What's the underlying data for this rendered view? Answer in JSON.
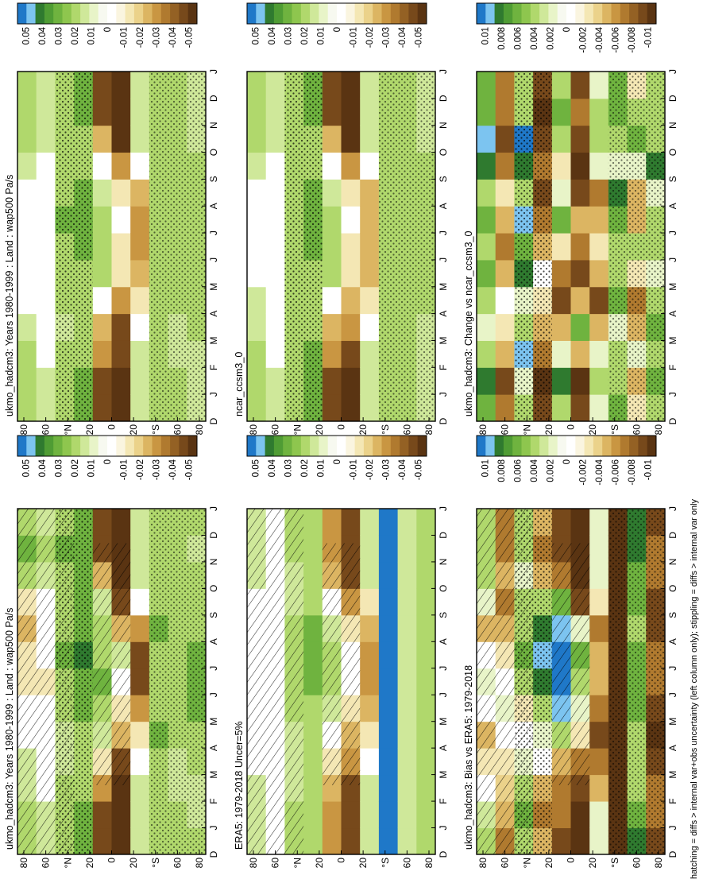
{
  "footnote": "hatching = diffs > internal var+obs uncertainty (left column only); stippling = diffs > internal var only",
  "colors": {
    "seq11": [
      "#1f78c8",
      "#7cc4f0",
      "#2f7a2f",
      "#4f9c34",
      "#6fb33f",
      "#8ec64e",
      "#b0d86c",
      "#cfe89a",
      "#e8f4c8",
      "#f7f9f0",
      "#ffffff",
      "#faf5e0",
      "#f4e7b4",
      "#ebd28a",
      "#dcb562",
      "#c99642",
      "#b07a2f",
      "#946124",
      "#77491b",
      "#5a3412"
    ],
    "hatch": "#000000",
    "stipple": "#000000"
  },
  "chart_data": [
    {
      "type": "heatmap",
      "title": "ukmo_hadcm3: Years 1980-1999 : Land : wap500 Pa/s",
      "x_months": [
        "J",
        "F",
        "M",
        "A",
        "M",
        "J",
        "J",
        "A",
        "S",
        "O",
        "N",
        "D",
        "J"
      ],
      "x_first_label": "D",
      "y_ticks": [
        "80",
        "60",
        "°N",
        "20",
        "0",
        "20",
        "°S",
        "60",
        "80"
      ],
      "colorbar": [
        "0.05",
        "0.04",
        "0.03",
        "0.02",
        "0.01",
        "0",
        "-0.01",
        "-0.02",
        "-0.03",
        "-0.04",
        "-0.05"
      ],
      "zlim": [
        -0.05,
        0.05
      ],
      "overlay": "hatch+stipple",
      "data": [
        [
          0.02,
          0.02,
          0.01,
          0.01,
          0.0,
          0.0,
          -0.01,
          -0.01,
          -0.02,
          -0.01,
          0.02,
          0.03,
          0.02
        ],
        [
          0.01,
          0.01,
          0.0,
          0.0,
          0.0,
          0.0,
          -0.01,
          0.0,
          0.0,
          0.0,
          0.01,
          0.02,
          0.01
        ],
        [
          0.02,
          0.02,
          0.02,
          0.01,
          0.01,
          0.02,
          0.02,
          0.03,
          0.02,
          0.02,
          0.02,
          0.03,
          0.02
        ],
        [
          0.03,
          0.03,
          0.02,
          0.02,
          0.02,
          0.03,
          0.03,
          0.04,
          0.03,
          0.03,
          0.03,
          0.03,
          0.03
        ],
        [
          -0.04,
          -0.04,
          -0.03,
          -0.01,
          0.01,
          0.02,
          0.03,
          0.02,
          0.02,
          0.01,
          -0.02,
          -0.04,
          -0.04
        ],
        [
          -0.05,
          -0.05,
          -0.05,
          -0.04,
          -0.02,
          -0.01,
          0.0,
          0.01,
          -0.02,
          -0.04,
          -0.05,
          -0.05,
          -0.05
        ],
        [
          0.01,
          0.01,
          0.01,
          0.0,
          -0.01,
          -0.03,
          -0.04,
          -0.04,
          -0.03,
          0.0,
          0.01,
          0.01,
          0.01
        ],
        [
          0.02,
          0.02,
          0.02,
          0.02,
          0.03,
          0.02,
          0.02,
          0.02,
          0.03,
          0.02,
          0.02,
          0.02,
          0.02
        ],
        [
          0.02,
          0.02,
          0.01,
          0.01,
          0.02,
          0.02,
          0.02,
          0.02,
          0.02,
          0.02,
          0.02,
          0.02,
          0.02
        ],
        [
          0.02,
          0.01,
          0.01,
          0.02,
          0.02,
          0.03,
          0.03,
          0.03,
          0.02,
          0.02,
          0.02,
          0.01,
          0.02
        ]
      ]
    },
    {
      "type": "heatmap",
      "title": "ukmo_hadcm3: Years 1980-1999 : Land : wap500 Pa/s",
      "x_months": [
        "J",
        "F",
        "M",
        "A",
        "M",
        "J",
        "J",
        "A",
        "S",
        "O",
        "N",
        "D",
        "J"
      ],
      "x_first_label": "D",
      "y_ticks": [
        "80",
        "60",
        "°N",
        "20",
        "0",
        "20",
        "°S",
        "60",
        "80"
      ],
      "colorbar": [
        "0.05",
        "0.04",
        "0.03",
        "0.02",
        "0.01",
        "0",
        "-0.01",
        "-0.02",
        "-0.03",
        "-0.04",
        "-0.05"
      ],
      "zlim": [
        -0.05,
        0.05
      ],
      "overlay": "stipple",
      "data": [
        [
          0.02,
          0.02,
          0.02,
          0.01,
          0.0,
          0.0,
          0.0,
          0.0,
          0.0,
          0.01,
          0.02,
          0.02,
          0.02
        ],
        [
          0.01,
          0.01,
          0.0,
          0.0,
          0.0,
          0.0,
          0.0,
          0.0,
          0.0,
          0.0,
          0.01,
          0.01,
          0.01
        ],
        [
          0.02,
          0.02,
          0.02,
          0.01,
          0.02,
          0.02,
          0.02,
          0.03,
          0.02,
          0.02,
          0.02,
          0.02,
          0.02
        ],
        [
          0.03,
          0.03,
          0.02,
          0.02,
          0.02,
          0.02,
          0.03,
          0.03,
          0.03,
          0.02,
          0.02,
          0.03,
          0.03
        ],
        [
          -0.04,
          -0.04,
          -0.03,
          -0.02,
          0.0,
          0.02,
          0.02,
          0.02,
          0.01,
          0.0,
          -0.02,
          -0.04,
          -0.04
        ],
        [
          -0.05,
          -0.05,
          -0.04,
          -0.04,
          -0.03,
          -0.01,
          -0.01,
          0.0,
          -0.01,
          -0.03,
          -0.05,
          -0.05,
          -0.05
        ],
        [
          0.01,
          0.01,
          0.01,
          0.0,
          -0.01,
          -0.02,
          -0.03,
          -0.03,
          -0.02,
          0.0,
          0.01,
          0.01,
          0.01
        ],
        [
          0.02,
          0.02,
          0.02,
          0.02,
          0.02,
          0.02,
          0.02,
          0.02,
          0.02,
          0.02,
          0.02,
          0.02,
          0.02
        ],
        [
          0.02,
          0.02,
          0.01,
          0.01,
          0.02,
          0.02,
          0.02,
          0.02,
          0.02,
          0.02,
          0.02,
          0.02,
          0.02
        ],
        [
          0.01,
          0.01,
          0.01,
          0.02,
          0.02,
          0.02,
          0.02,
          0.02,
          0.02,
          0.02,
          0.01,
          0.01,
          0.01
        ]
      ]
    },
    {
      "type": "heatmap",
      "title": "ERA5: 1979-2018 Uncer=5%",
      "x_months": [
        "J",
        "F",
        "M",
        "A",
        "M",
        "J",
        "J",
        "A",
        "S",
        "O",
        "N",
        "D",
        "J"
      ],
      "x_first_label": "D",
      "y_ticks": [
        "80",
        "60",
        "°N",
        "20",
        "0",
        "20",
        "°S",
        "60",
        "80"
      ],
      "colorbar": [
        "0.05",
        "0.04",
        "0.03",
        "0.02",
        "0.01",
        "0",
        "-0.01",
        "-0.02",
        "-0.03",
        "-0.04",
        "-0.05"
      ],
      "zlim": [
        -0.05,
        0.05
      ],
      "overlay": "hatch",
      "data": [
        [
          0.01,
          0.01,
          0.01,
          0.0,
          0.0,
          0.0,
          0.0,
          0.0,
          0.0,
          0.0,
          0.01,
          0.01,
          0.01
        ],
        [
          0.0,
          0.0,
          0.0,
          0.0,
          0.0,
          0.0,
          0.0,
          0.0,
          0.0,
          0.0,
          0.0,
          0.0,
          0.0
        ],
        [
          0.02,
          0.02,
          0.01,
          0.01,
          0.01,
          0.02,
          0.02,
          0.02,
          0.02,
          0.01,
          0.01,
          0.02,
          0.02
        ],
        [
          0.02,
          0.02,
          0.02,
          0.02,
          0.02,
          0.02,
          0.03,
          0.03,
          0.03,
          0.02,
          0.02,
          0.02,
          0.02
        ],
        [
          -0.03,
          -0.03,
          -0.02,
          -0.01,
          0.0,
          0.01,
          0.02,
          0.02,
          0.01,
          0.0,
          -0.02,
          -0.03,
          -0.03
        ],
        [
          -0.04,
          -0.04,
          -0.04,
          -0.03,
          -0.02,
          -0.01,
          0.0,
          0.0,
          -0.01,
          -0.03,
          -0.04,
          -0.04,
          -0.04
        ],
        [
          0.01,
          0.01,
          0.01,
          0.0,
          -0.01,
          -0.02,
          -0.03,
          -0.03,
          -0.02,
          -0.01,
          0.01,
          0.01,
          0.01
        ],
        [
          0.05,
          0.05,
          0.05,
          0.05,
          0.05,
          0.05,
          0.05,
          0.05,
          0.05,
          0.05,
          0.05,
          0.05,
          0.05
        ],
        [
          0.01,
          0.01,
          0.01,
          0.01,
          0.01,
          0.01,
          0.01,
          0.01,
          0.01,
          0.01,
          0.01,
          0.01,
          0.01
        ],
        [
          0.02,
          0.02,
          0.02,
          0.02,
          0.02,
          0.02,
          0.02,
          0.02,
          0.02,
          0.02,
          0.02,
          0.02,
          0.02
        ]
      ]
    },
    {
      "type": "heatmap",
      "title": "ncar_ccsm3_0",
      "x_months": [
        "J",
        "F",
        "M",
        "A",
        "M",
        "J",
        "J",
        "A",
        "S",
        "O",
        "N",
        "D",
        "J"
      ],
      "x_first_label": "D",
      "y_ticks": [
        "80",
        "60",
        "°N",
        "20",
        "0",
        "20",
        "°S",
        "60",
        "80"
      ],
      "colorbar": [
        "0.05",
        "0.04",
        "0.03",
        "0.02",
        "0.01",
        "0",
        "-0.01",
        "-0.02",
        "-0.03",
        "-0.04",
        "-0.05"
      ],
      "zlim": [
        -0.05,
        0.05
      ],
      "overlay": "stipple",
      "data": [
        [
          0.02,
          0.02,
          0.02,
          0.01,
          0.01,
          0.0,
          0.0,
          0.0,
          0.0,
          0.01,
          0.02,
          0.02,
          0.02
        ],
        [
          0.01,
          0.01,
          0.0,
          0.0,
          0.0,
          0.0,
          0.0,
          0.0,
          0.0,
          0.0,
          0.01,
          0.01,
          0.01
        ],
        [
          0.02,
          0.02,
          0.02,
          0.02,
          0.02,
          0.02,
          0.02,
          0.02,
          0.02,
          0.02,
          0.02,
          0.02,
          0.02
        ],
        [
          0.03,
          0.03,
          0.03,
          0.02,
          0.02,
          0.02,
          0.03,
          0.03,
          0.03,
          0.02,
          0.02,
          0.03,
          0.03
        ],
        [
          -0.04,
          -0.04,
          -0.03,
          -0.02,
          0.0,
          0.02,
          0.02,
          0.02,
          0.01,
          0.0,
          -0.02,
          -0.04,
          -0.04
        ],
        [
          -0.05,
          -0.05,
          -0.04,
          -0.03,
          -0.02,
          -0.01,
          -0.01,
          0.0,
          -0.01,
          -0.03,
          -0.05,
          -0.05,
          -0.05
        ],
        [
          0.01,
          0.01,
          0.01,
          0.0,
          -0.01,
          -0.02,
          -0.02,
          -0.02,
          -0.02,
          0.0,
          0.01,
          0.01,
          0.01
        ],
        [
          0.02,
          0.02,
          0.02,
          0.02,
          0.02,
          0.02,
          0.02,
          0.02,
          0.02,
          0.02,
          0.02,
          0.02,
          0.02
        ],
        [
          0.02,
          0.02,
          0.02,
          0.02,
          0.02,
          0.02,
          0.02,
          0.02,
          0.02,
          0.02,
          0.02,
          0.02,
          0.02
        ],
        [
          0.01,
          0.01,
          0.01,
          0.01,
          0.02,
          0.02,
          0.02,
          0.02,
          0.02,
          0.02,
          0.01,
          0.01,
          0.01
        ]
      ]
    },
    {
      "type": "heatmap",
      "title": "ukmo_hadcm3: Bias vs ERA5: 1979-2018",
      "x_months": [
        "J",
        "F",
        "M",
        "A",
        "M",
        "J",
        "J",
        "A",
        "S",
        "O",
        "N",
        "D",
        "J"
      ],
      "x_first_label": "D",
      "y_ticks": [
        "80",
        "60",
        "°N",
        "20",
        "0",
        "20",
        "°S",
        "60",
        "80"
      ],
      "colorbar": [
        "0.01",
        "0.008",
        "0.006",
        "0.004",
        "0.002",
        "0",
        "-0.002",
        "-0.004",
        "-0.006",
        "-0.008",
        "-0.01"
      ],
      "zlim": [
        -0.01,
        0.01
      ],
      "overlay": "hatch+stipple",
      "data": [
        [
          0.004,
          0.003,
          0.0,
          -0.002,
          -0.004,
          0.0,
          0.002,
          0.0,
          -0.004,
          0.002,
          0.004,
          0.004,
          0.004
        ],
        [
          -0.006,
          -0.004,
          -0.003,
          -0.002,
          0.0,
          0.002,
          0.0,
          -0.002,
          -0.004,
          -0.006,
          -0.004,
          -0.006,
          -0.006
        ],
        [
          0.004,
          0.006,
          0.004,
          0.002,
          0.0,
          -0.002,
          0.004,
          0.006,
          0.004,
          0.004,
          0.002,
          0.004,
          0.004
        ],
        [
          -0.004,
          -0.006,
          -0.004,
          0.0,
          0.002,
          0.004,
          0.008,
          0.009,
          0.008,
          0.004,
          -0.004,
          -0.006,
          -0.004
        ],
        [
          -0.008,
          -0.006,
          -0.006,
          -0.004,
          0.004,
          0.009,
          0.01,
          0.01,
          0.009,
          0.006,
          -0.006,
          -0.008,
          -0.008
        ],
        [
          -0.01,
          -0.01,
          -0.008,
          -0.006,
          -0.002,
          0.002,
          0.004,
          0.006,
          0.002,
          -0.008,
          -0.01,
          -0.01,
          -0.01
        ],
        [
          0.002,
          0.002,
          -0.004,
          -0.006,
          -0.008,
          -0.006,
          -0.004,
          -0.004,
          -0.006,
          -0.002,
          0.002,
          0.002,
          0.002
        ],
        [
          -0.01,
          -0.01,
          -0.01,
          -0.01,
          -0.01,
          -0.01,
          -0.01,
          -0.01,
          -0.01,
          -0.01,
          -0.01,
          -0.01,
          -0.01
        ],
        [
          0.008,
          0.006,
          0.004,
          0.004,
          0.004,
          0.006,
          0.006,
          0.006,
          0.004,
          0.006,
          0.006,
          0.008,
          0.008
        ],
        [
          -0.008,
          -0.006,
          -0.006,
          -0.008,
          -0.01,
          -0.008,
          -0.006,
          -0.006,
          -0.008,
          -0.008,
          -0.006,
          -0.006,
          -0.008
        ]
      ]
    },
    {
      "type": "heatmap",
      "title": "ukmo_hadcm3: Change vs ncar_ccsm3_0",
      "x_months": [
        "J",
        "F",
        "M",
        "A",
        "M",
        "J",
        "J",
        "A",
        "S",
        "O",
        "N",
        "D",
        "J"
      ],
      "x_first_label": "D",
      "y_ticks": [
        "80",
        "60",
        "°N",
        "20",
        "0",
        "20",
        "°S",
        "60",
        "80"
      ],
      "colorbar": [
        "0.01",
        "0.008",
        "0.006",
        "0.004",
        "0.002",
        "0",
        "-0.002",
        "-0.004",
        "-0.006",
        "-0.008",
        "-0.01"
      ],
      "zlim": [
        -0.01,
        0.01
      ],
      "overlay": "stipple",
      "data": [
        [
          0.006,
          0.008,
          0.004,
          0.002,
          0.004,
          0.006,
          0.004,
          0.006,
          0.004,
          0.008,
          0.009,
          0.006,
          0.006
        ],
        [
          -0.006,
          -0.008,
          -0.004,
          -0.002,
          0.0,
          -0.004,
          -0.006,
          -0.004,
          -0.002,
          -0.006,
          -0.008,
          -0.006,
          -0.006
        ],
        [
          0.004,
          0.002,
          0.009,
          0.004,
          0.002,
          0.008,
          0.006,
          0.009,
          0.004,
          0.008,
          0.01,
          0.004,
          0.004
        ],
        [
          -0.008,
          -0.01,
          -0.006,
          -0.004,
          -0.002,
          0.0,
          -0.004,
          -0.006,
          -0.008,
          -0.006,
          -0.008,
          -0.01,
          -0.008
        ],
        [
          0.004,
          0.008,
          0.002,
          -0.004,
          -0.008,
          -0.006,
          -0.002,
          0.006,
          0.002,
          -0.002,
          0.004,
          0.006,
          0.004
        ],
        [
          -0.008,
          -0.01,
          -0.004,
          0.006,
          -0.004,
          -0.008,
          -0.006,
          -0.004,
          -0.008,
          -0.01,
          -0.008,
          -0.006,
          -0.008
        ],
        [
          0.002,
          0.004,
          0.002,
          -0.004,
          -0.008,
          -0.004,
          -0.002,
          -0.004,
          -0.006,
          0.002,
          0.004,
          0.004,
          0.002
        ],
        [
          0.006,
          0.004,
          0.004,
          0.002,
          0.006,
          0.004,
          0.004,
          0.006,
          0.008,
          0.002,
          0.004,
          0.006,
          0.006
        ],
        [
          -0.002,
          -0.004,
          0.002,
          -0.004,
          -0.006,
          -0.002,
          0.004,
          -0.004,
          -0.004,
          0.002,
          0.006,
          0.004,
          -0.002
        ],
        [
          0.004,
          0.006,
          0.004,
          0.006,
          0.004,
          0.002,
          0.004,
          0.004,
          0.002,
          0.008,
          0.004,
          0.004,
          0.004
        ]
      ]
    }
  ]
}
